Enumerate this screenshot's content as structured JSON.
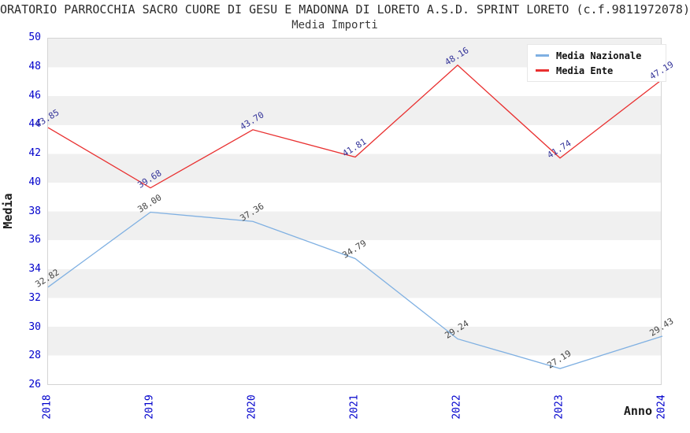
{
  "header": {
    "title": "ORATORIO PARROCCHIA SACRO CUORE DI GESU E MADONNA DI LORETO A.S.D. SPRINT LORETO (c.f.9811972078)",
    "subtitle": "Media Importi"
  },
  "chart_data": {
    "type": "line",
    "title": "Media Importi",
    "x": [
      "2018",
      "2019",
      "2020",
      "2021",
      "2022",
      "2023",
      "2024"
    ],
    "series": [
      {
        "name": "Media Nazionale",
        "values": [
          32.82,
          38.0,
          37.36,
          34.79,
          29.24,
          27.19,
          29.43
        ],
        "color": "#7FB0E2",
        "label_color": "#444444"
      },
      {
        "name": "Media Ente",
        "values": [
          43.85,
          39.68,
          43.7,
          41.81,
          48.16,
          41.74,
          47.19
        ],
        "color": "#E93030",
        "label_color": "#333399"
      }
    ],
    "xlabel": "Anno",
    "ylabel": "Media",
    "ylim": [
      26,
      50
    ],
    "ytick_step": 2,
    "value_label_decimals": 2,
    "grid": "alternating horizontal gray bands",
    "legend_position": "top-right",
    "colors": {
      "tick_label": "#0000CC",
      "band": "#F0F0F0",
      "plot_border": "#D4D4D4",
      "background": "#FFFFFF"
    }
  }
}
